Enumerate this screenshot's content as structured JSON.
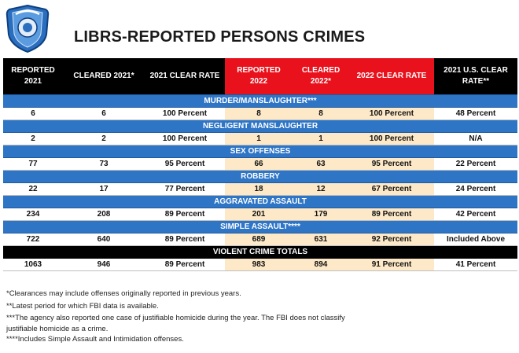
{
  "title": "LIBRS-REPORTED PERSONS CRIMES",
  "colors": {
    "header_black": "#000000",
    "header_red": "#e8111c",
    "section_blue": "#2e75c6",
    "highlight": "#fde9c8"
  },
  "badge": {
    "icon": "police-badge-logo"
  },
  "headers": [
    "REPORTED 2021",
    "CLEARED 2021*",
    "2021 CLEAR RATE",
    "REPORTED 2022",
    "CLEARED 2022*",
    "2022 CLEAR RATE",
    "2021 U.S. CLEAR RATE**"
  ],
  "sections": [
    {
      "label": "MURDER/MANSLAUGHTER***",
      "row": [
        "6",
        "6",
        "100 Percent",
        "8",
        "8",
        "100 Percent",
        "48 Percent"
      ]
    },
    {
      "label": "NEGLIGENT MANSLAUGHTER",
      "row": [
        "2",
        "2",
        "100 Percent",
        "1",
        "1",
        "100 Percent",
        "N/A"
      ]
    },
    {
      "label": "SEX OFFENSES",
      "row": [
        "77",
        "73",
        "95 Percent",
        "66",
        "63",
        "95 Percent",
        "22 Percent"
      ]
    },
    {
      "label": "ROBBERY",
      "row": [
        "22",
        "17",
        "77 Percent",
        "18",
        "12",
        "67 Percent",
        "24 Percent"
      ]
    },
    {
      "label": "AGGRAVATED ASSAULT",
      "row": [
        "234",
        "208",
        "89 Percent",
        "201",
        "179",
        "89 Percent",
        "42 Percent"
      ]
    },
    {
      "label": "SIMPLE ASSAULT****",
      "row": [
        "722",
        "640",
        "89 Percent",
        "689",
        "631",
        "92 Percent",
        "Included Above"
      ]
    },
    {
      "label": "VIOLENT CRIME TOTALS",
      "row": [
        "1063",
        "946",
        "89 Percent",
        "983",
        "894",
        "91 Percent",
        "41 Percent"
      ]
    }
  ],
  "notes": [
    "*Clearances may include offenses originally reported in previous years.",
    "**Latest period for which FBI data is available.",
    "***The agency also reported one case of justifiable homicide during the year. The FBI does not classify",
    "justifiable homicide as a crime.",
    "****Includes Simple Assault and Intimidation offenses."
  ]
}
